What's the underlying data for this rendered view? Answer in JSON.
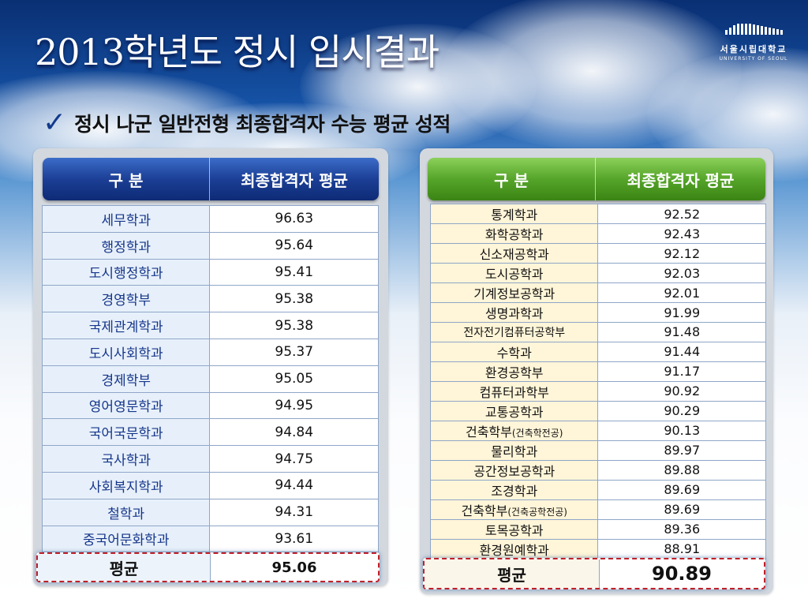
{
  "title": "2013학년도 정시 입시결과",
  "logo": {
    "name_ko": "서울시립대학교",
    "name_en": "UNIVERSITY OF SEOUL"
  },
  "subtitle": {
    "check_icon": "checkmark-icon",
    "text": "정시 나군 일반전형 최종합격자 수능 평균 성적"
  },
  "left_table": {
    "header": {
      "col1": "구 분",
      "col2": "최종합격자 평균"
    },
    "rows": [
      {
        "name": "세무학과",
        "score": "96.63"
      },
      {
        "name": "행정학과",
        "score": "95.64"
      },
      {
        "name": "도시행정학과",
        "score": "95.41"
      },
      {
        "name": "경영학부",
        "score": "95.38"
      },
      {
        "name": "국제관계학과",
        "score": "95.38"
      },
      {
        "name": "도시사회학과",
        "score": "95.37"
      },
      {
        "name": "경제학부",
        "score": "95.05"
      },
      {
        "name": "영어영문학과",
        "score": "94.95"
      },
      {
        "name": "국어국문학과",
        "score": "94.84"
      },
      {
        "name": "국사학과",
        "score": "94.75"
      },
      {
        "name": "사회복지학과",
        "score": "94.44"
      },
      {
        "name": "철학과",
        "score": "94.31"
      },
      {
        "name": "중국어문화학과",
        "score": "93.61"
      }
    ],
    "average": {
      "label": "평균",
      "score": "95.06"
    }
  },
  "right_table": {
    "header": {
      "col1": "구 분",
      "col2": "최종합격자 평균"
    },
    "rows": [
      {
        "name": "통계학과",
        "score": "92.52"
      },
      {
        "name": "화학공학과",
        "score": "92.43"
      },
      {
        "name": "신소재공학과",
        "score": "92.12"
      },
      {
        "name": "도시공학과",
        "score": "92.03"
      },
      {
        "name": "기계정보공학과",
        "score": "92.01"
      },
      {
        "name": "생명과학과",
        "score": "91.99"
      },
      {
        "name": "전자전기컴퓨터공학부",
        "score": "91.48"
      },
      {
        "name": "수학과",
        "score": "91.44"
      },
      {
        "name": "환경공학부",
        "score": "91.17"
      },
      {
        "name": "컴퓨터과학부",
        "score": "90.92"
      },
      {
        "name": "교통공학과",
        "score": "90.29"
      },
      {
        "name": "건축학부",
        "name_sub": "(건축학전공)",
        "score": "90.13"
      },
      {
        "name": "물리학과",
        "score": "89.97"
      },
      {
        "name": "공간정보공학과",
        "score": "89.88"
      },
      {
        "name": "조경학과",
        "score": "89.69"
      },
      {
        "name": "건축학부",
        "name_sub": "(건축공학전공)",
        "score": "89.69"
      },
      {
        "name": "토목공학과",
        "score": "89.36"
      },
      {
        "name": "환경원예학과",
        "score": "88.91"
      }
    ],
    "average": {
      "label": "평균",
      "score": "90.89"
    }
  }
}
